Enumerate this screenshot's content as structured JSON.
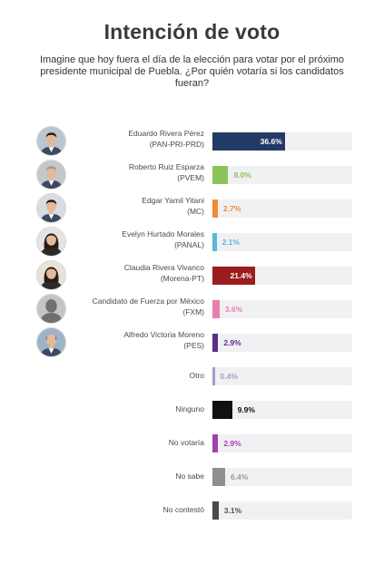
{
  "header": {
    "title": "Intención de voto",
    "subtitle": "Imagine que hoy fuera el día de la elección para votar por el próximo presidente municipal de Puebla. ¿Por quién votaría si los candidatos fueran?"
  },
  "chart_data": {
    "type": "bar",
    "orientation": "horizontal",
    "title": "Intención de voto",
    "subtitle": "Imagine que hoy fuera el día de la elección para votar por el próximo presidente municipal de Puebla. ¿Por quién votaría si los candidatos fueran?",
    "xlim": [
      0,
      100
    ],
    "grid": false,
    "legend": "none",
    "categories": [
      "Eduardo Rivera Pérez (PAN-PRI-PRD)",
      "Roberto Ruiz Esparza (PVEM)",
      "Edgar Yamil Yitani (MC)",
      "Evelyn Hurtado Morales (PANAL)",
      "Claudia Rivera Vivanco (Morena-PT)",
      "Candidato de Fuerza por México (FXM)",
      "Alfredo Victoria Moreno (PES)",
      "Otro",
      "Ninguno",
      "No votaría",
      "No sabe",
      "No contestó"
    ],
    "values": [
      36.6,
      8.0,
      2.7,
      2.1,
      21.4,
      3.6,
      2.9,
      0.4,
      9.9,
      2.9,
      6.4,
      3.1
    ],
    "bars": [
      {
        "name": "Eduardo Rivera Pérez",
        "party": "(PAN-PRI-PRD)",
        "value": 36.6,
        "value_label": "36.6%",
        "color": "#243a66",
        "label_color": "#243a66",
        "label_inside": true,
        "avatar": "man-dark-hair",
        "avatar_bg": "#b9c6cf"
      },
      {
        "name": "Roberto Ruiz Esparza",
        "party": "(PVEM)",
        "value": 8.0,
        "value_label": "8.0%",
        "color": "#8dc35a",
        "label_color": "#8dc35a",
        "label_inside": false,
        "avatar": "man-gray-hair",
        "avatar_bg": "#c7c7c7"
      },
      {
        "name": "Edgar Yamil Yitani",
        "party": "(MC)",
        "value": 2.7,
        "value_label": "2.7%",
        "color": "#ee8a3a",
        "label_color": "#ee8a3a",
        "label_inside": false,
        "avatar": "man-dark-hair",
        "avatar_bg": "#d9dde2"
      },
      {
        "name": "Evelyn Hurtado Morales",
        "party": "(PANAL)",
        "value": 2.1,
        "value_label": "2.1%",
        "color": "#5bb7d4",
        "label_color": "#5bb7d4",
        "label_inside": false,
        "avatar": "woman-long-hair",
        "avatar_bg": "#e4e4e4"
      },
      {
        "name": "Claudia Rivera Vivanco",
        "party": "(Morena-PT)",
        "value": 21.4,
        "value_label": "21.4%",
        "color": "#9b1d1d",
        "label_color": "#9b1d1d",
        "label_inside": true,
        "avatar": "woman-long-hair",
        "avatar_bg": "#e7e2dc"
      },
      {
        "name": "Candidato de Fuerza por México",
        "party": "(FXM)",
        "value": 3.6,
        "value_label": "3.6%",
        "color": "#e77fb0",
        "label_color": "#e77fb0",
        "label_inside": false,
        "avatar": "silhouette",
        "avatar_bg": "#c4c4c4"
      },
      {
        "name": "Alfredo Victoria Moreno",
        "party": "(PES)",
        "value": 2.9,
        "value_label": "2.9%",
        "color": "#5b2d86",
        "label_color": "#5b2d86",
        "label_inside": false,
        "avatar": "man-bald",
        "avatar_bg": "#9fb3c8"
      },
      {
        "name": "Otro",
        "party": "",
        "value": 0.4,
        "value_label": "0.4%",
        "color": "#a699c9",
        "label_color": "#a699c9",
        "label_inside": false,
        "avatar": "",
        "avatar_bg": ""
      },
      {
        "name": "Ninguno",
        "party": "",
        "value": 9.9,
        "value_label": "9.9%",
        "color": "#111111",
        "label_color": "#111111",
        "label_inside": false,
        "avatar": "",
        "avatar_bg": ""
      },
      {
        "name": "No votaría",
        "party": "",
        "value": 2.9,
        "value_label": "2.9%",
        "color": "#a43fae",
        "label_color": "#a43fae",
        "label_inside": false,
        "avatar": "",
        "avatar_bg": ""
      },
      {
        "name": "No sabe",
        "party": "",
        "value": 6.4,
        "value_label": "6.4%",
        "color": "#8f8f8f",
        "label_color": "#9a9a9a",
        "label_inside": false,
        "avatar": "",
        "avatar_bg": ""
      },
      {
        "name": "No contestó",
        "party": "",
        "value": 3.1,
        "value_label": "3.1%",
        "color": "#4a4a4a",
        "label_color": "#555555",
        "label_inside": false,
        "avatar": "",
        "avatar_bg": ""
      }
    ]
  }
}
